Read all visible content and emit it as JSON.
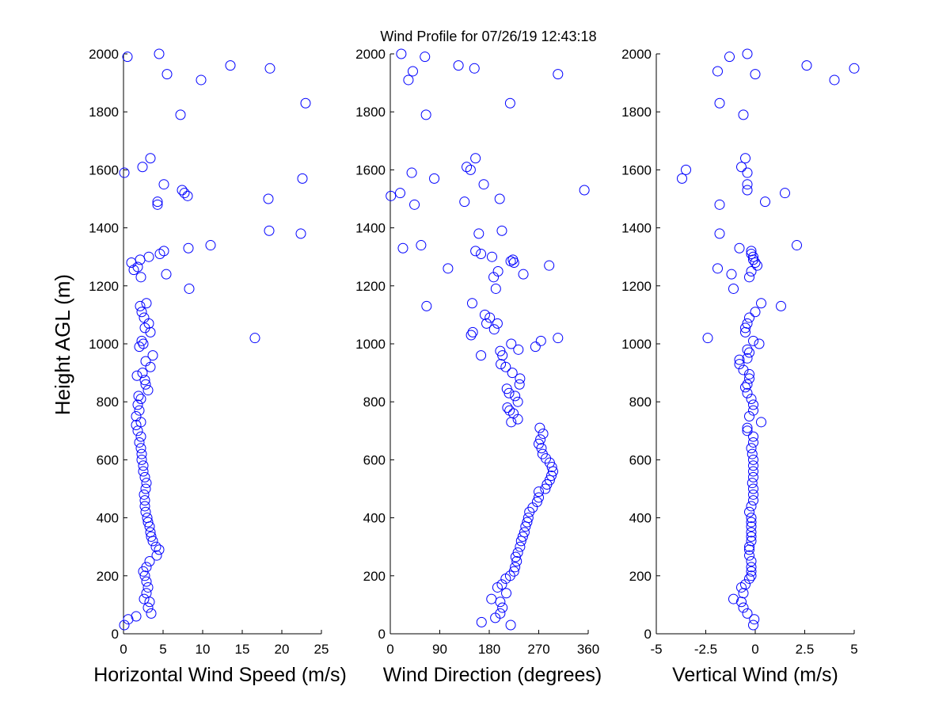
{
  "figure": {
    "title": "Wind Profile for  07/26/19 12:43:18",
    "ylabel": "Height AGL (m)",
    "marker_color": "#0000ff"
  },
  "chart_data": [
    {
      "type": "scatter",
      "name": "speed",
      "xlabel": "Horizontal Wind Speed (m/s)",
      "xlim": [
        0,
        25
      ],
      "xticks": [
        0,
        5,
        10,
        15,
        20,
        25
      ],
      "xtick_labels": [
        "0",
        "5",
        "10",
        "15",
        "20",
        "25"
      ],
      "ylim": [
        0,
        2000
      ],
      "yticks": [
        0,
        200,
        400,
        600,
        800,
        1000,
        1200,
        1400,
        1600,
        1800,
        2000
      ],
      "grid": false,
      "points": [
        [
          0.1,
          30
        ],
        [
          0.6,
          50
        ],
        [
          1.6,
          60
        ],
        [
          3.5,
          70
        ],
        [
          3.1,
          90
        ],
        [
          3.3,
          110
        ],
        [
          2.6,
          120
        ],
        [
          2.9,
          140
        ],
        [
          3.1,
          160
        ],
        [
          2.9,
          180
        ],
        [
          2.7,
          200
        ],
        [
          2.5,
          215
        ],
        [
          2.9,
          230
        ],
        [
          3.3,
          250
        ],
        [
          4.2,
          270
        ],
        [
          4.5,
          290
        ],
        [
          4.1,
          300
        ],
        [
          3.7,
          320
        ],
        [
          3.5,
          335
        ],
        [
          3.4,
          350
        ],
        [
          3.3,
          370
        ],
        [
          3.1,
          385
        ],
        [
          3.0,
          400
        ],
        [
          2.8,
          420
        ],
        [
          2.7,
          440
        ],
        [
          2.7,
          460
        ],
        [
          2.6,
          480
        ],
        [
          2.8,
          500
        ],
        [
          2.9,
          520
        ],
        [
          2.7,
          540
        ],
        [
          2.5,
          560
        ],
        [
          2.5,
          580
        ],
        [
          2.3,
          600
        ],
        [
          2.3,
          620
        ],
        [
          2.2,
          640
        ],
        [
          2.0,
          660
        ],
        [
          2.2,
          680
        ],
        [
          1.8,
          700
        ],
        [
          1.6,
          720
        ],
        [
          2.2,
          730
        ],
        [
          1.6,
          750
        ],
        [
          2.0,
          770
        ],
        [
          1.8,
          790
        ],
        [
          2.2,
          810
        ],
        [
          1.9,
          820
        ],
        [
          3.1,
          840
        ],
        [
          2.8,
          860
        ],
        [
          2.7,
          875
        ],
        [
          1.7,
          890
        ],
        [
          2.4,
          900
        ],
        [
          3.4,
          920
        ],
        [
          2.8,
          940
        ],
        [
          3.7,
          960
        ],
        [
          2.0,
          990
        ],
        [
          2.5,
          1000
        ],
        [
          2.3,
          1010
        ],
        [
          16.6,
          1020
        ],
        [
          3.4,
          1040
        ],
        [
          2.7,
          1055
        ],
        [
          3.2,
          1070
        ],
        [
          2.6,
          1090
        ],
        [
          2.3,
          1110
        ],
        [
          2.9,
          1140
        ],
        [
          2.1,
          1130
        ],
        [
          8.3,
          1190
        ],
        [
          2.2,
          1230
        ],
        [
          5.4,
          1240
        ],
        [
          1.3,
          1255
        ],
        [
          1.8,
          1265
        ],
        [
          1.0,
          1280
        ],
        [
          2.1,
          1290
        ],
        [
          3.2,
          1300
        ],
        [
          4.6,
          1310
        ],
        [
          5.1,
          1320
        ],
        [
          8.2,
          1330
        ],
        [
          11.0,
          1340
        ],
        [
          22.4,
          1380
        ],
        [
          18.4,
          1390
        ],
        [
          4.3,
          1480
        ],
        [
          4.3,
          1490
        ],
        [
          18.3,
          1500
        ],
        [
          8.1,
          1510
        ],
        [
          7.7,
          1520
        ],
        [
          7.4,
          1530
        ],
        [
          5.1,
          1550
        ],
        [
          22.6,
          1570
        ],
        [
          0.1,
          1590
        ],
        [
          2.4,
          1610
        ],
        [
          3.4,
          1640
        ],
        [
          7.2,
          1790
        ],
        [
          23.0,
          1830
        ],
        [
          9.8,
          1910
        ],
        [
          5.5,
          1930
        ],
        [
          18.5,
          1950
        ],
        [
          13.5,
          1960
        ],
        [
          0.5,
          1990
        ],
        [
          4.5,
          2000
        ]
      ]
    },
    {
      "type": "scatter",
      "name": "direction",
      "xlabel": "Wind Direction (degrees)",
      "xlim": [
        0,
        360
      ],
      "xticks": [
        0,
        90,
        180,
        270,
        360
      ],
      "xtick_labels": [
        "0",
        "90",
        "180",
        "270",
        "360"
      ],
      "ylim": [
        0,
        2000
      ],
      "yticks": [
        0,
        200,
        400,
        600,
        800,
        1000,
        1200,
        1400,
        1600,
        1800,
        2000
      ],
      "grid": false,
      "points": [
        [
          219,
          30
        ],
        [
          166,
          40
        ],
        [
          191,
          55
        ],
        [
          200,
          70
        ],
        [
          204,
          90
        ],
        [
          200,
          110
        ],
        [
          184,
          120
        ],
        [
          211,
          140
        ],
        [
          195,
          160
        ],
        [
          203,
          170
        ],
        [
          210,
          190
        ],
        [
          218,
          200
        ],
        [
          225,
          215
        ],
        [
          227,
          230
        ],
        [
          230,
          250
        ],
        [
          228,
          265
        ],
        [
          232,
          280
        ],
        [
          236,
          300
        ],
        [
          238,
          320
        ],
        [
          241,
          335
        ],
        [
          244,
          350
        ],
        [
          246,
          370
        ],
        [
          249,
          385
        ],
        [
          251,
          400
        ],
        [
          253,
          420
        ],
        [
          259,
          435
        ],
        [
          267,
          455
        ],
        [
          270,
          470
        ],
        [
          270,
          490
        ],
        [
          282,
          500
        ],
        [
          285,
          515
        ],
        [
          290,
          530
        ],
        [
          293,
          545
        ],
        [
          296,
          560
        ],
        [
          294,
          575
        ],
        [
          290,
          590
        ],
        [
          283,
          605
        ],
        [
          277,
          620
        ],
        [
          275,
          640
        ],
        [
          270,
          655
        ],
        [
          273,
          670
        ],
        [
          278,
          690
        ],
        [
          272,
          710
        ],
        [
          232,
          740
        ],
        [
          220,
          730
        ],
        [
          224,
          760
        ],
        [
          217,
          770
        ],
        [
          213,
          780
        ],
        [
          232,
          800
        ],
        [
          227,
          820
        ],
        [
          216,
          830
        ],
        [
          212,
          845
        ],
        [
          235,
          860
        ],
        [
          236,
          880
        ],
        [
          222,
          900
        ],
        [
          210,
          920
        ],
        [
          201,
          930
        ],
        [
          204,
          960
        ],
        [
          165,
          960
        ],
        [
          200,
          975
        ],
        [
          233,
          980
        ],
        [
          220,
          1000
        ],
        [
          264,
          990
        ],
        [
          274,
          1010
        ],
        [
          305,
          1020
        ],
        [
          150,
          1040
        ],
        [
          147,
          1030
        ],
        [
          189,
          1050
        ],
        [
          175,
          1070
        ],
        [
          195,
          1070
        ],
        [
          181,
          1090
        ],
        [
          172,
          1100
        ],
        [
          66,
          1130
        ],
        [
          149,
          1140
        ],
        [
          192,
          1190
        ],
        [
          188,
          1230
        ],
        [
          196,
          1250
        ],
        [
          105,
          1260
        ],
        [
          225,
          1280
        ],
        [
          242,
          1240
        ],
        [
          289,
          1270
        ],
        [
          219,
          1285
        ],
        [
          223,
          1290
        ],
        [
          23,
          1330
        ],
        [
          155,
          1320
        ],
        [
          165,
          1310
        ],
        [
          185,
          1300
        ],
        [
          56,
          1340
        ],
        [
          161,
          1380
        ],
        [
          203,
          1390
        ],
        [
          44,
          1480
        ],
        [
          135,
          1490
        ],
        [
          199,
          1500
        ],
        [
          1,
          1510
        ],
        [
          18,
          1520
        ],
        [
          353,
          1530
        ],
        [
          170,
          1550
        ],
        [
          80,
          1570
        ],
        [
          39,
          1590
        ],
        [
          146,
          1600
        ],
        [
          139,
          1610
        ],
        [
          155,
          1640
        ],
        [
          218,
          1830
        ],
        [
          65,
          1790
        ],
        [
          33,
          1910
        ],
        [
          41,
          1940
        ],
        [
          153,
          1950
        ],
        [
          124,
          1960
        ],
        [
          305,
          1930
        ],
        [
          63,
          1990
        ],
        [
          20,
          2000
        ]
      ]
    },
    {
      "type": "scatter",
      "name": "vertical",
      "xlabel": "Vertical Wind (m/s)",
      "xlim": [
        -5,
        5
      ],
      "xticks": [
        -5,
        -2.5,
        0,
        2.5,
        5
      ],
      "xtick_labels": [
        "-5",
        "-2.5",
        "0",
        "2.5",
        "5"
      ],
      "ylim": [
        0,
        2000
      ],
      "yticks": [
        0,
        200,
        400,
        600,
        800,
        1000,
        1200,
        1400,
        1600,
        1800,
        2000
      ],
      "grid": false,
      "points": [
        [
          -0.1,
          30
        ],
        [
          -0.05,
          50
        ],
        [
          -0.4,
          70
        ],
        [
          -0.6,
          90
        ],
        [
          -0.7,
          110
        ],
        [
          -1.1,
          120
        ],
        [
          -0.6,
          140
        ],
        [
          -0.7,
          160
        ],
        [
          -0.5,
          170
        ],
        [
          -0.3,
          190
        ],
        [
          -0.2,
          200
        ],
        [
          -0.2,
          215
        ],
        [
          -0.2,
          230
        ],
        [
          -0.2,
          250
        ],
        [
          -0.3,
          270
        ],
        [
          -0.3,
          290
        ],
        [
          -0.3,
          300
        ],
        [
          -0.2,
          320
        ],
        [
          -0.2,
          335
        ],
        [
          -0.2,
          350
        ],
        [
          -0.2,
          370
        ],
        [
          -0.2,
          385
        ],
        [
          -0.2,
          400
        ],
        [
          -0.3,
          420
        ],
        [
          -0.2,
          440
        ],
        [
          -0.1,
          460
        ],
        [
          -0.1,
          480
        ],
        [
          -0.1,
          500
        ],
        [
          -0.15,
          520
        ],
        [
          -0.1,
          540
        ],
        [
          -0.1,
          560
        ],
        [
          -0.1,
          580
        ],
        [
          -0.1,
          600
        ],
        [
          -0.15,
          620
        ],
        [
          -0.2,
          640
        ],
        [
          -0.1,
          660
        ],
        [
          -0.1,
          680
        ],
        [
          -0.4,
          700
        ],
        [
          -0.4,
          710
        ],
        [
          0.3,
          730
        ],
        [
          -0.3,
          750
        ],
        [
          -0.1,
          770
        ],
        [
          -0.1,
          790
        ],
        [
          -0.2,
          810
        ],
        [
          -0.4,
          830
        ],
        [
          -0.5,
          850
        ],
        [
          -0.4,
          860
        ],
        [
          -0.3,
          880
        ],
        [
          -0.3,
          895
        ],
        [
          -0.6,
          910
        ],
        [
          -0.8,
          930
        ],
        [
          -0.8,
          945
        ],
        [
          -0.4,
          950
        ],
        [
          -0.3,
          970
        ],
        [
          -0.4,
          980
        ],
        [
          0.2,
          1000
        ],
        [
          -0.1,
          1010
        ],
        [
          -2.4,
          1020
        ],
        [
          -0.5,
          1040
        ],
        [
          -0.5,
          1055
        ],
        [
          -0.4,
          1070
        ],
        [
          -0.3,
          1090
        ],
        [
          0.0,
          1110
        ],
        [
          0.3,
          1140
        ],
        [
          1.3,
          1130
        ],
        [
          -1.1,
          1190
        ],
        [
          -0.3,
          1230
        ],
        [
          -1.2,
          1240
        ],
        [
          -0.2,
          1250
        ],
        [
          -1.9,
          1260
        ],
        [
          0.1,
          1270
        ],
        [
          0.0,
          1280
        ],
        [
          -0.1,
          1290
        ],
        [
          -0.1,
          1300
        ],
        [
          -0.2,
          1310
        ],
        [
          -0.2,
          1320
        ],
        [
          -0.8,
          1330
        ],
        [
          2.1,
          1340
        ],
        [
          -1.8,
          1380
        ],
        [
          -1.8,
          1480
        ],
        [
          0.5,
          1490
        ],
        [
          1.5,
          1520
        ],
        [
          -0.4,
          1530
        ],
        [
          -0.4,
          1550
        ],
        [
          -3.7,
          1570
        ],
        [
          -0.4,
          1590
        ],
        [
          -3.5,
          1600
        ],
        [
          -0.7,
          1610
        ],
        [
          -0.5,
          1640
        ],
        [
          -0.6,
          1790
        ],
        [
          -1.8,
          1830
        ],
        [
          4.0,
          1910
        ],
        [
          -1.9,
          1940
        ],
        [
          0.0,
          1930
        ],
        [
          5.0,
          1950
        ],
        [
          2.6,
          1960
        ],
        [
          -1.3,
          1990
        ],
        [
          -0.4,
          2000
        ]
      ]
    }
  ]
}
